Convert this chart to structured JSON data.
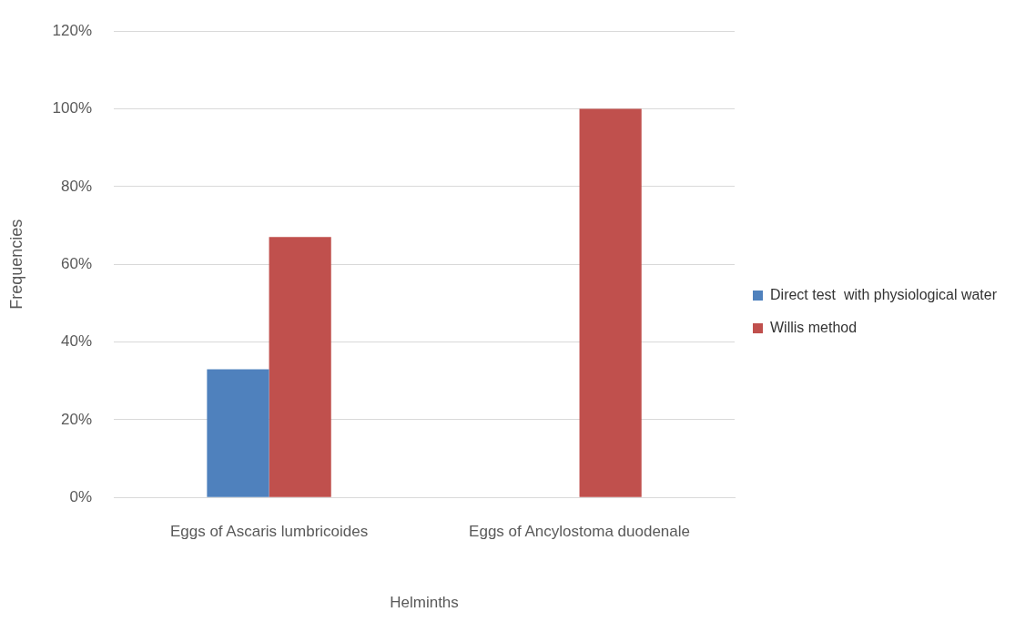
{
  "chart_data": {
    "type": "bar",
    "xlabel": "Helminths",
    "ylabel": "Frequencies",
    "categories": [
      "Eggs of Ascaris lumbricoides",
      "Eggs of Ancylostoma duodenale"
    ],
    "series": [
      {
        "name": "Direct test  with physiological water",
        "color": "#4f81bd",
        "values": [
          33,
          0
        ]
      },
      {
        "name": "Willis method",
        "color": "#c0504d",
        "values": [
          67,
          100
        ]
      }
    ],
    "ylim": [
      0,
      120
    ],
    "yticks": [
      {
        "value": 0,
        "label": "0%"
      },
      {
        "value": 20,
        "label": "20%"
      },
      {
        "value": 40,
        "label": "40%"
      },
      {
        "value": 60,
        "label": "60%"
      },
      {
        "value": 80,
        "label": "80%"
      },
      {
        "value": 100,
        "label": "100%"
      },
      {
        "value": 120,
        "label": "120%"
      }
    ],
    "grid": "y",
    "legend": "right"
  }
}
